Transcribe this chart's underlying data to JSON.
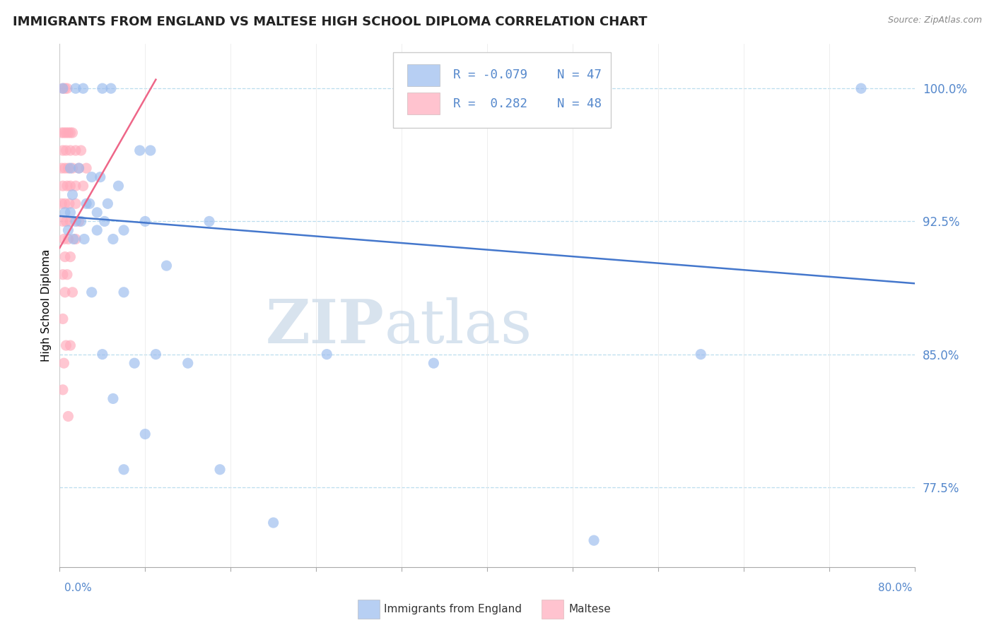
{
  "title": "IMMIGRANTS FROM ENGLAND VS MALTESE HIGH SCHOOL DIPLOMA CORRELATION CHART",
  "source": "Source: ZipAtlas.com",
  "ylabel": "High School Diploma",
  "xmin": 0.0,
  "xmax": 80.0,
  "ymin": 73.0,
  "ymax": 102.5,
  "ytick_vals": [
    77.5,
    85.0,
    92.5,
    100.0
  ],
  "ytick_labels": [
    "77.5%",
    "85.0%",
    "92.5%",
    "100.0%"
  ],
  "legend_R1": "-0.079",
  "legend_N1": "47",
  "legend_R2": "0.282",
  "legend_N2": "48",
  "blue_color": "#99BBEE",
  "pink_color": "#FFAABB",
  "blue_line_color": "#4477CC",
  "pink_line_color": "#EE6688",
  "watermark_zip": "ZIP",
  "watermark_atlas": "atlas",
  "blue_trend_x0": 0.0,
  "blue_trend_y0": 92.8,
  "blue_trend_x1": 80.0,
  "blue_trend_y1": 89.0,
  "pink_trend_x0": 0.0,
  "pink_trend_y0": 91.0,
  "pink_trend_x1": 9.0,
  "pink_trend_y1": 100.5,
  "blue_dots": [
    [
      0.3,
      100.0
    ],
    [
      1.5,
      100.0
    ],
    [
      2.2,
      100.0
    ],
    [
      4.0,
      100.0
    ],
    [
      4.8,
      100.0
    ],
    [
      7.5,
      96.5
    ],
    [
      8.5,
      96.5
    ],
    [
      1.0,
      95.5
    ],
    [
      1.8,
      95.5
    ],
    [
      3.0,
      95.0
    ],
    [
      3.8,
      95.0
    ],
    [
      5.5,
      94.5
    ],
    [
      1.2,
      94.0
    ],
    [
      2.5,
      93.5
    ],
    [
      2.8,
      93.5
    ],
    [
      4.5,
      93.5
    ],
    [
      0.5,
      93.0
    ],
    [
      1.0,
      93.0
    ],
    [
      1.5,
      92.5
    ],
    [
      2.0,
      92.5
    ],
    [
      4.2,
      92.5
    ],
    [
      8.0,
      92.5
    ],
    [
      14.0,
      92.5
    ],
    [
      0.8,
      92.0
    ],
    [
      3.5,
      92.0
    ],
    [
      6.0,
      92.0
    ],
    [
      1.3,
      91.5
    ],
    [
      2.3,
      91.5
    ],
    [
      5.0,
      91.5
    ],
    [
      10.0,
      90.0
    ],
    [
      3.0,
      88.5
    ],
    [
      6.0,
      88.5
    ],
    [
      4.0,
      85.0
    ],
    [
      9.0,
      85.0
    ],
    [
      25.0,
      85.0
    ],
    [
      7.0,
      84.5
    ],
    [
      12.0,
      84.5
    ],
    [
      5.0,
      82.5
    ],
    [
      8.0,
      80.5
    ],
    [
      6.0,
      78.5
    ],
    [
      15.0,
      78.5
    ],
    [
      20.0,
      75.5
    ],
    [
      35.0,
      84.5
    ],
    [
      50.0,
      74.5
    ],
    [
      60.0,
      85.0
    ],
    [
      75.0,
      100.0
    ],
    [
      3.5,
      93.0
    ]
  ],
  "pink_dots": [
    [
      0.3,
      100.0
    ],
    [
      0.5,
      100.0
    ],
    [
      0.7,
      100.0
    ],
    [
      0.2,
      97.5
    ],
    [
      0.4,
      97.5
    ],
    [
      0.6,
      97.5
    ],
    [
      0.8,
      97.5
    ],
    [
      1.0,
      97.5
    ],
    [
      1.2,
      97.5
    ],
    [
      0.3,
      96.5
    ],
    [
      0.6,
      96.5
    ],
    [
      1.0,
      96.5
    ],
    [
      1.5,
      96.5
    ],
    [
      2.0,
      96.5
    ],
    [
      0.2,
      95.5
    ],
    [
      0.5,
      95.5
    ],
    [
      0.8,
      95.5
    ],
    [
      1.2,
      95.5
    ],
    [
      1.8,
      95.5
    ],
    [
      2.5,
      95.5
    ],
    [
      0.3,
      94.5
    ],
    [
      0.7,
      94.5
    ],
    [
      1.0,
      94.5
    ],
    [
      1.5,
      94.5
    ],
    [
      2.2,
      94.5
    ],
    [
      0.2,
      93.5
    ],
    [
      0.5,
      93.5
    ],
    [
      0.9,
      93.5
    ],
    [
      1.5,
      93.5
    ],
    [
      0.3,
      92.5
    ],
    [
      0.6,
      92.5
    ],
    [
      1.0,
      92.5
    ],
    [
      1.8,
      92.5
    ],
    [
      0.4,
      91.5
    ],
    [
      0.8,
      91.5
    ],
    [
      1.5,
      91.5
    ],
    [
      0.5,
      90.5
    ],
    [
      1.0,
      90.5
    ],
    [
      0.3,
      89.5
    ],
    [
      0.7,
      89.5
    ],
    [
      0.5,
      88.5
    ],
    [
      1.2,
      88.5
    ],
    [
      0.3,
      87.0
    ],
    [
      0.6,
      85.5
    ],
    [
      1.0,
      85.5
    ],
    [
      0.4,
      84.5
    ],
    [
      0.3,
      83.0
    ],
    [
      0.8,
      81.5
    ]
  ]
}
